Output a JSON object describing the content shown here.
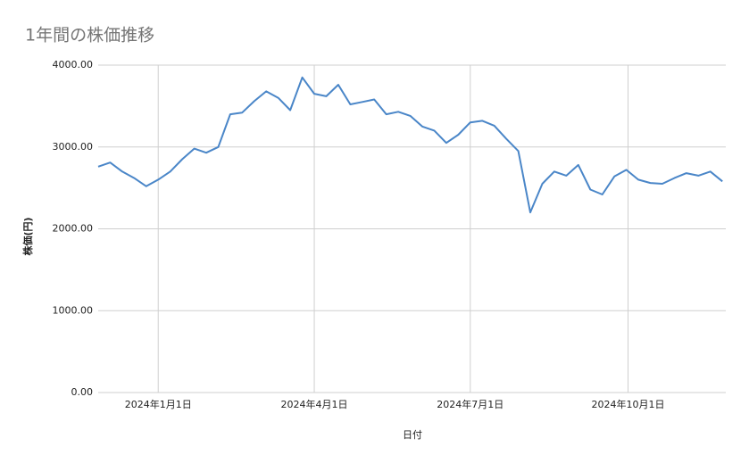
{
  "chart_data": {
    "type": "line",
    "title": "1年間の株価推移",
    "x_label": "日付",
    "y_label": "株価(円)",
    "x": [
      "2023-11-27",
      "2023-12-04",
      "2023-12-11",
      "2023-12-18",
      "2023-12-25",
      "2024-01-01",
      "2024-01-08",
      "2024-01-15",
      "2024-01-22",
      "2024-01-29",
      "2024-02-05",
      "2024-02-12",
      "2024-02-19",
      "2024-02-26",
      "2024-03-04",
      "2024-03-11",
      "2024-03-18",
      "2024-03-25",
      "2024-04-01",
      "2024-04-08",
      "2024-04-15",
      "2024-04-22",
      "2024-04-29",
      "2024-05-06",
      "2024-05-13",
      "2024-05-20",
      "2024-05-27",
      "2024-06-03",
      "2024-06-10",
      "2024-06-17",
      "2024-06-24",
      "2024-07-01",
      "2024-07-08",
      "2024-07-15",
      "2024-07-22",
      "2024-07-29",
      "2024-08-05",
      "2024-08-12",
      "2024-08-19",
      "2024-08-26",
      "2024-09-02",
      "2024-09-09",
      "2024-09-16",
      "2024-09-23",
      "2024-09-30",
      "2024-10-07",
      "2024-10-14",
      "2024-10-21",
      "2024-10-28",
      "2024-11-04",
      "2024-11-11",
      "2024-11-18",
      "2024-11-25"
    ],
    "values": [
      2760,
      2810,
      2700,
      2620,
      2520,
      2600,
      2700,
      2850,
      2980,
      2930,
      3000,
      3400,
      3420,
      3560,
      3680,
      3600,
      3450,
      3850,
      3650,
      3620,
      3760,
      3520,
      3550,
      3580,
      3400,
      3430,
      3380,
      3250,
      3200,
      3050,
      3150,
      3300,
      3320,
      3260,
      3100,
      2950,
      2200,
      2550,
      2700,
      2650,
      2780,
      2480,
      2420,
      2640,
      2720,
      2600,
      2560,
      2550,
      2620,
      2680,
      2650,
      2700,
      2580
    ],
    "color": "#4a86c8",
    "xlim": [
      "2023-11-27",
      "2024-11-27"
    ],
    "xticks": [
      {
        "value": "2024-01-01",
        "label": "2024年1月1日"
      },
      {
        "value": "2024-04-01",
        "label": "2024年4月1日"
      },
      {
        "value": "2024-07-01",
        "label": "2024年7月1日"
      },
      {
        "value": "2024-10-01",
        "label": "2024年10月1日"
      }
    ],
    "ylim": [
      0,
      4000
    ],
    "yticks": [
      {
        "value": 0,
        "label": "0.00"
      },
      {
        "value": 1000,
        "label": "1000.00"
      },
      {
        "value": 2000,
        "label": "2000.00"
      },
      {
        "value": 3000,
        "label": "3000.00"
      },
      {
        "value": 4000,
        "label": "4000.00"
      }
    ],
    "grid": true
  }
}
